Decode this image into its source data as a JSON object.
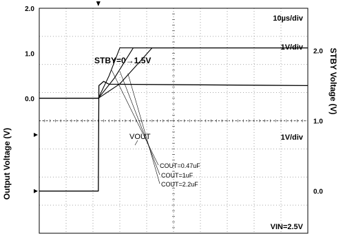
{
  "chart_data": {
    "type": "line",
    "x_unit": "us",
    "x_range": [
      0,
      100
    ],
    "grid": true,
    "top_panel": {
      "series": [
        {
          "name": "STBY",
          "x": [
            0,
            22,
            22.2,
            24,
            26,
            100
          ],
          "y": [
            0.0,
            0.0,
            1.5,
            1.56,
            1.52,
            1.5
          ]
        }
      ],
      "ylabel": "STBY Voltage (V)",
      "yticks": [
        "0.0",
        "1.0",
        "2.0"
      ],
      "ylim": [
        -0.6,
        2.6
      ],
      "scale_label": "1V/div",
      "timebase_label": "10µs/div",
      "annotation": "STBY=0→1.5V"
    },
    "bottom_panel": {
      "series": [
        {
          "name": "COUT=0.47uF",
          "x": [
            0,
            22,
            26,
            30,
            100
          ],
          "y": [
            0,
            0,
            0.5,
            1.12,
            1.12
          ]
        },
        {
          "name": "COUT=1uF",
          "x": [
            0,
            22,
            28,
            35,
            100
          ],
          "y": [
            0,
            0,
            0.45,
            1.12,
            1.12
          ]
        },
        {
          "name": "COUT=2.2uF",
          "x": [
            0,
            22,
            30,
            38,
            42,
            100
          ],
          "y": [
            0,
            0,
            0.32,
            0.85,
            1.12,
            1.12
          ]
        }
      ],
      "ylabel": "Output Voltage (V)",
      "yticks": [
        "0.0",
        "1.0",
        "2.0"
      ],
      "ylim": [
        -3.0,
        2.0
      ],
      "scale_label": "1V/div",
      "trace_label": "VOUT",
      "legend": [
        "COUT=0.47uF",
        "COUT=1uF",
        "COUT=2.2uF"
      ],
      "condition": "VIN=2.5V"
    }
  }
}
